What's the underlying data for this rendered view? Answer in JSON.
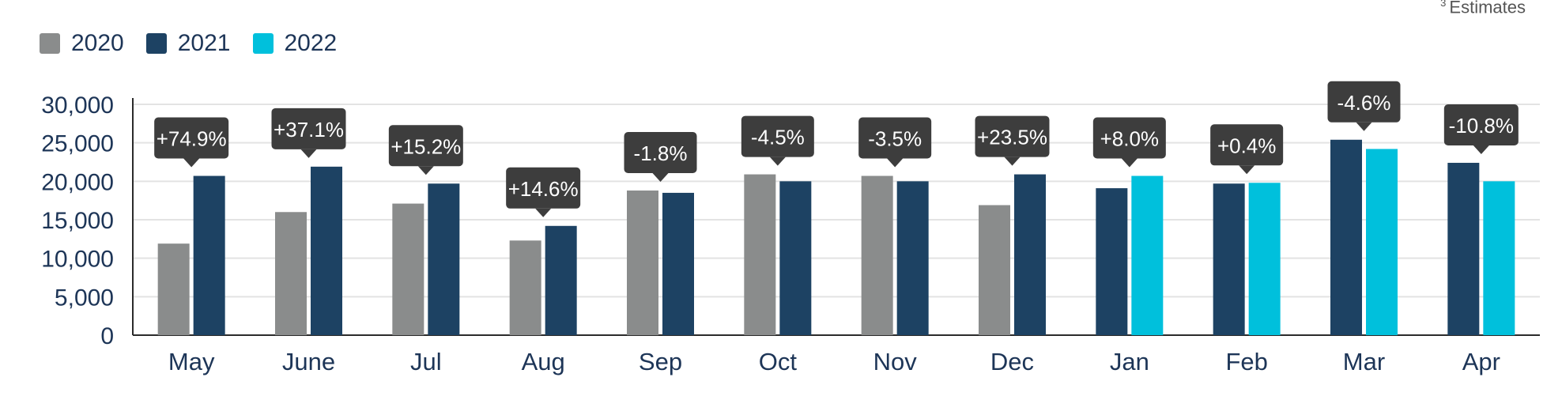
{
  "note": {
    "marker": "3",
    "text": "Estimates"
  },
  "legend": [
    {
      "label": "2020",
      "color": "#8a8c8c"
    },
    {
      "label": "2021",
      "color": "#1d4263"
    },
    {
      "label": "2022",
      "color": "#00c0dc"
    }
  ],
  "chart_data": {
    "type": "bar",
    "categories": [
      "May",
      "June",
      "Jul",
      "Aug",
      "Sep",
      "Oct",
      "Nov",
      "Dec",
      "Jan",
      "Feb",
      "Mar",
      "Apr"
    ],
    "series": [
      {
        "name": "2020",
        "color": "#8a8c8c",
        "values": [
          11900,
          16000,
          17100,
          12300,
          18800,
          20900,
          20700,
          16900,
          null,
          null,
          null,
          null
        ]
      },
      {
        "name": "2021",
        "color": "#1d4263",
        "values": [
          20700,
          21900,
          19700,
          14200,
          18500,
          20000,
          20000,
          20900,
          19100,
          19700,
          25400,
          22400
        ]
      },
      {
        "name": "2022",
        "color": "#00c0dc",
        "values": [
          null,
          null,
          null,
          null,
          null,
          null,
          null,
          null,
          20700,
          19800,
          24200,
          20000
        ]
      }
    ],
    "annotations": [
      "+74.9%",
      "+37.1%",
      "+15.2%",
      "+14.6%",
      "-1.8%",
      "-4.5%",
      "-3.5%",
      "+23.5%",
      "+8.0%",
      "+0.4%",
      "-4.6%",
      "-10.8%"
    ],
    "yticks": [
      "0",
      "5,000",
      "10,000",
      "15,000",
      "20,000",
      "25,000",
      "30,000"
    ],
    "ylim": [
      0,
      30000
    ],
    "grid": true,
    "legend_position": "top-left"
  }
}
